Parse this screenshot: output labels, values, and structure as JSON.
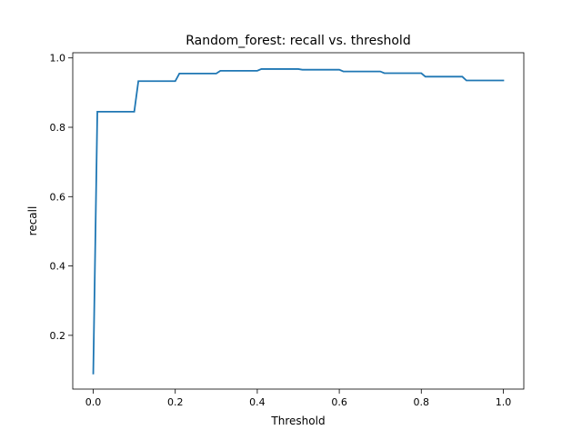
{
  "chart_data": {
    "type": "line",
    "title": "Random_forest: recall vs. threshold",
    "xlabel": "Threshold",
    "ylabel": "recall",
    "xlim": [
      -0.05,
      1.05
    ],
    "ylim": [
      0.045,
      1.015
    ],
    "x_ticks": [
      0.0,
      0.2,
      0.4,
      0.6,
      0.8,
      1.0
    ],
    "x_tick_labels": [
      "0.0",
      "0.2",
      "0.4",
      "0.6",
      "0.8",
      "1.0"
    ],
    "y_ticks": [
      0.2,
      0.4,
      0.6,
      0.8,
      1.0
    ],
    "y_tick_labels": [
      "0.2",
      "0.4",
      "0.6",
      "0.8",
      "1.0"
    ],
    "grid": false,
    "line_color": "#1f77b4",
    "series": [
      {
        "x": [
          0.0,
          0.01,
          0.02,
          0.03,
          0.04,
          0.05,
          0.06,
          0.07,
          0.08,
          0.09,
          0.1,
          0.11,
          0.12,
          0.13,
          0.14,
          0.15,
          0.16,
          0.17,
          0.18,
          0.19,
          0.2,
          0.21,
          0.22,
          0.23,
          0.24,
          0.25,
          0.26,
          0.27,
          0.28,
          0.29,
          0.3,
          0.31,
          0.32,
          0.33,
          0.34,
          0.35,
          0.36,
          0.37,
          0.38,
          0.39,
          0.4,
          0.41,
          0.42,
          0.43,
          0.44,
          0.45,
          0.46,
          0.47,
          0.48,
          0.49,
          0.5,
          0.51,
          0.52,
          0.53,
          0.54,
          0.55,
          0.56,
          0.57,
          0.58,
          0.59,
          0.6,
          0.61,
          0.62,
          0.63,
          0.64,
          0.65,
          0.66,
          0.67,
          0.68,
          0.69,
          0.7,
          0.71,
          0.72,
          0.73,
          0.74,
          0.75,
          0.76,
          0.77,
          0.78,
          0.79,
          0.8,
          0.81,
          0.82,
          0.83,
          0.84,
          0.85,
          0.86,
          0.87,
          0.88,
          0.89,
          0.9,
          0.91,
          0.92,
          0.93,
          0.94,
          0.95,
          0.96,
          0.97,
          0.98,
          0.99,
          1.0
        ],
        "values": [
          0.09,
          0.845,
          0.845,
          0.845,
          0.845,
          0.845,
          0.845,
          0.845,
          0.845,
          0.845,
          0.845,
          0.933,
          0.933,
          0.933,
          0.933,
          0.933,
          0.933,
          0.933,
          0.933,
          0.933,
          0.933,
          0.955,
          0.955,
          0.955,
          0.955,
          0.955,
          0.955,
          0.955,
          0.955,
          0.955,
          0.955,
          0.963,
          0.963,
          0.963,
          0.963,
          0.963,
          0.963,
          0.963,
          0.963,
          0.963,
          0.963,
          0.968,
          0.968,
          0.968,
          0.968,
          0.968,
          0.968,
          0.968,
          0.968,
          0.968,
          0.968,
          0.966,
          0.966,
          0.966,
          0.966,
          0.966,
          0.966,
          0.966,
          0.966,
          0.966,
          0.966,
          0.961,
          0.961,
          0.961,
          0.961,
          0.961,
          0.961,
          0.961,
          0.961,
          0.961,
          0.961,
          0.956,
          0.956,
          0.956,
          0.956,
          0.956,
          0.956,
          0.956,
          0.956,
          0.956,
          0.956,
          0.946,
          0.946,
          0.946,
          0.946,
          0.946,
          0.946,
          0.946,
          0.946,
          0.946,
          0.946,
          0.935,
          0.935,
          0.935,
          0.935,
          0.935,
          0.935,
          0.935,
          0.935,
          0.935,
          0.935
        ]
      }
    ]
  }
}
